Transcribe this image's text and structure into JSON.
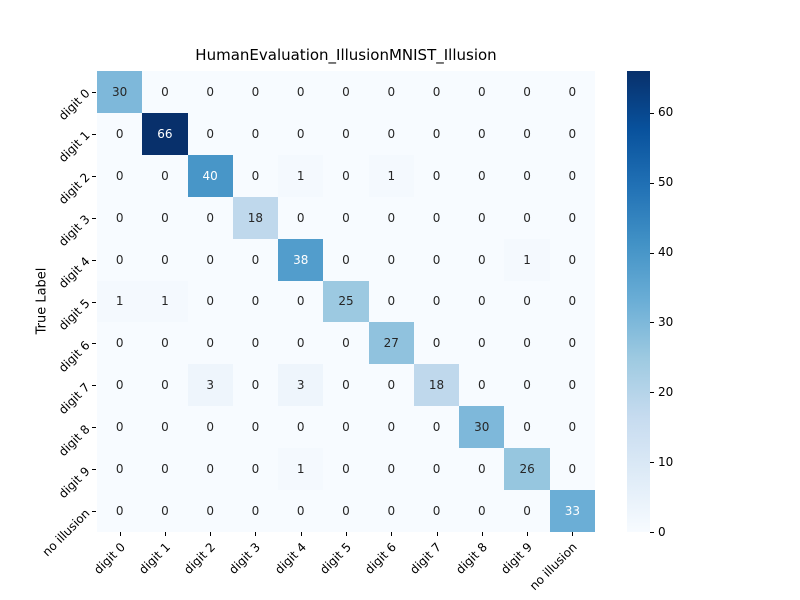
{
  "chart_data": {
    "type": "heatmap",
    "title": "HumanEvaluation_IllusionMNIST_Illusion",
    "xlabel": "",
    "ylabel": "True Label",
    "x_categories": [
      "digit 0",
      "digit 1",
      "digit 2",
      "digit 3",
      "digit 4",
      "digit 5",
      "digit 6",
      "digit 7",
      "digit 8",
      "digit 9",
      "no illusion"
    ],
    "y_categories": [
      "digit 0",
      "digit 1",
      "digit 2",
      "digit 3",
      "digit 4",
      "digit 5",
      "digit 6",
      "digit 7",
      "digit 8",
      "digit 9",
      "no illusion"
    ],
    "matrix": [
      [
        30,
        0,
        0,
        0,
        0,
        0,
        0,
        0,
        0,
        0,
        0
      ],
      [
        0,
        66,
        0,
        0,
        0,
        0,
        0,
        0,
        0,
        0,
        0
      ],
      [
        0,
        0,
        40,
        0,
        1,
        0,
        1,
        0,
        0,
        0,
        0
      ],
      [
        0,
        0,
        0,
        18,
        0,
        0,
        0,
        0,
        0,
        0,
        0
      ],
      [
        0,
        0,
        0,
        0,
        38,
        0,
        0,
        0,
        0,
        1,
        0
      ],
      [
        1,
        1,
        0,
        0,
        0,
        25,
        0,
        0,
        0,
        0,
        0
      ],
      [
        0,
        0,
        0,
        0,
        0,
        0,
        27,
        0,
        0,
        0,
        0
      ],
      [
        0,
        0,
        3,
        0,
        3,
        0,
        0,
        18,
        0,
        0,
        0
      ],
      [
        0,
        0,
        0,
        0,
        0,
        0,
        0,
        0,
        30,
        0,
        0
      ],
      [
        0,
        0,
        0,
        0,
        1,
        0,
        0,
        0,
        0,
        26,
        0
      ],
      [
        0,
        0,
        0,
        0,
        0,
        0,
        0,
        0,
        0,
        0,
        33
      ]
    ],
    "vmin": 0,
    "vmax": 66,
    "colormap": "Blues",
    "colormap_stops": [
      {
        "t": 0.0,
        "color": "#f7fbff"
      },
      {
        "t": 0.125,
        "color": "#deebf7"
      },
      {
        "t": 0.25,
        "color": "#c6dbef"
      },
      {
        "t": 0.375,
        "color": "#9ecae1"
      },
      {
        "t": 0.5,
        "color": "#6baed6"
      },
      {
        "t": 0.625,
        "color": "#4292c6"
      },
      {
        "t": 0.75,
        "color": "#2171b5"
      },
      {
        "t": 0.875,
        "color": "#08519c"
      },
      {
        "t": 1.0,
        "color": "#08306b"
      }
    ],
    "annotation_dark_color": "#262626",
    "annotation_light_color": "#ffffff",
    "colorbar_ticks": [
      0,
      10,
      20,
      30,
      40,
      50,
      60
    ],
    "legend_position": "right",
    "grid": false
  }
}
